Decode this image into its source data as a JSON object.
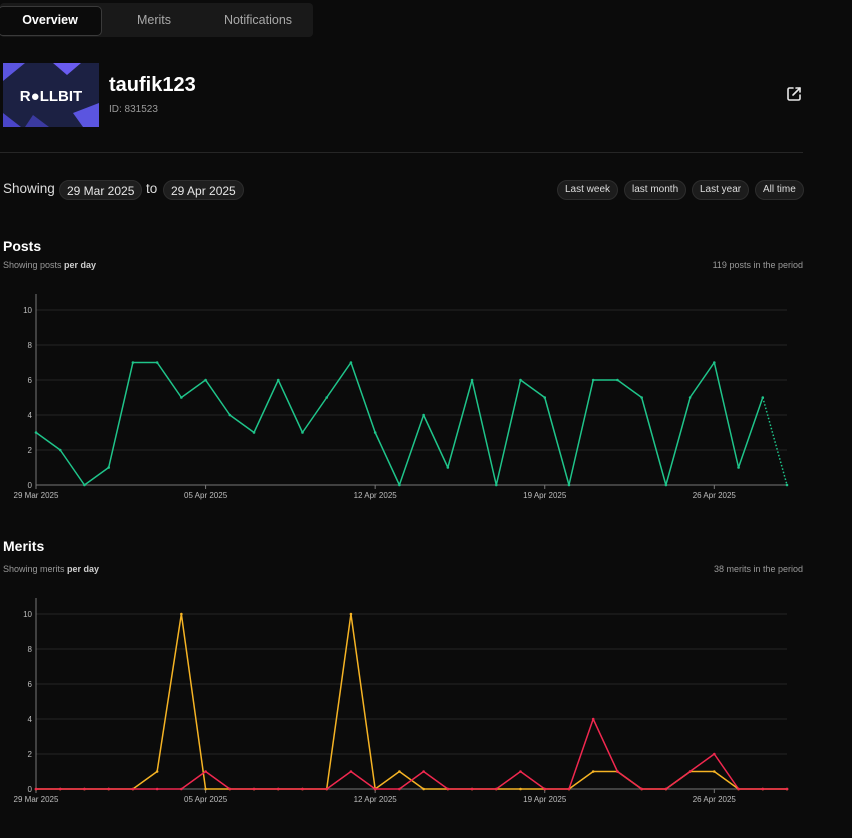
{
  "tabs": [
    {
      "label": "Overview",
      "active": true
    },
    {
      "label": "Merits",
      "active": false
    },
    {
      "label": "Notifications",
      "active": false
    }
  ],
  "profile": {
    "username": "taufik123",
    "id_text": "ID: 831523",
    "avatar_text": "R●LLBIT"
  },
  "range": {
    "showing_label": "Showing",
    "from": "29 Mar 2025",
    "to_label": "to",
    "to": "29 Apr 2025",
    "buttons": [
      "Last week",
      "last month",
      "Last year",
      "All time"
    ]
  },
  "posts": {
    "title": "Posts",
    "subtitle_prefix": "Showing posts ",
    "subtitle_bold": "per day",
    "count_text": "119 posts in the period"
  },
  "merits": {
    "title": "Merits",
    "subtitle_prefix": "Showing merits ",
    "subtitle_bold": "per day",
    "count_text": "38 merits in the period"
  },
  "colors": {
    "posts_line": "#1fc48a",
    "merits_orange": "#f5b324",
    "merits_red": "#f0284f",
    "grid": "#262626"
  },
  "chart_data": [
    {
      "type": "line",
      "dates": [
        "2025-03-29",
        "2025-03-30",
        "2025-03-31",
        "2025-04-01",
        "2025-04-02",
        "2025-04-03",
        "2025-04-04",
        "2025-04-05",
        "2025-04-06",
        "2025-04-07",
        "2025-04-08",
        "2025-04-09",
        "2025-04-10",
        "2025-04-11",
        "2025-04-12",
        "2025-04-13",
        "2025-04-14",
        "2025-04-15",
        "2025-04-16",
        "2025-04-17",
        "2025-04-18",
        "2025-04-19",
        "2025-04-20",
        "2025-04-21",
        "2025-04-22",
        "2025-04-23",
        "2025-04-24",
        "2025-04-25",
        "2025-04-26",
        "2025-04-27",
        "2025-04-28",
        "2025-04-29"
      ],
      "x_tick_labels": [
        "29 Mar 2025",
        "05 Apr 2025",
        "12 Apr 2025",
        "19 Apr 2025",
        "26 Apr 2025"
      ],
      "y_ticks": [
        0,
        2,
        4,
        6,
        8,
        10
      ],
      "ylim": [
        0,
        10
      ],
      "series": [
        {
          "values": [
            3,
            2,
            0,
            1,
            7,
            7,
            5,
            6,
            4,
            3,
            6,
            3,
            5,
            7,
            3,
            0,
            4,
            1,
            6,
            0,
            6,
            5,
            0,
            6,
            6,
            5,
            0,
            5,
            7,
            1,
            5,
            0
          ],
          "last_segment_dotted": true
        }
      ]
    },
    {
      "type": "line",
      "dates": [
        "2025-03-29",
        "2025-03-30",
        "2025-03-31",
        "2025-04-01",
        "2025-04-02",
        "2025-04-03",
        "2025-04-04",
        "2025-04-05",
        "2025-04-06",
        "2025-04-07",
        "2025-04-08",
        "2025-04-09",
        "2025-04-10",
        "2025-04-11",
        "2025-04-12",
        "2025-04-13",
        "2025-04-14",
        "2025-04-15",
        "2025-04-16",
        "2025-04-17",
        "2025-04-18",
        "2025-04-19",
        "2025-04-20",
        "2025-04-21",
        "2025-04-22",
        "2025-04-23",
        "2025-04-24",
        "2025-04-25",
        "2025-04-26",
        "2025-04-27",
        "2025-04-28",
        "2025-04-29"
      ],
      "x_tick_labels": [
        "29 Mar 2025",
        "05 Apr 2025",
        "12 Apr 2025",
        "19 Apr 2025",
        "26 Apr 2025"
      ],
      "y_ticks": [
        0,
        2,
        4,
        6,
        8,
        10
      ],
      "ylim": [
        0,
        10
      ],
      "series": [
        {
          "color": "orange",
          "values": [
            0,
            0,
            0,
            0,
            0,
            1,
            10,
            0,
            0,
            0,
            0,
            0,
            0,
            10,
            0,
            1,
            0,
            0,
            0,
            0,
            0,
            0,
            0,
            1,
            1,
            0,
            0,
            1,
            1,
            0,
            0,
            0
          ]
        },
        {
          "color": "red",
          "values": [
            0,
            0,
            0,
            0,
            0,
            0,
            0,
            1,
            0,
            0,
            0,
            0,
            0,
            1,
            0,
            0,
            1,
            0,
            0,
            0,
            1,
            0,
            0,
            4,
            1,
            0,
            0,
            1,
            2,
            0,
            0,
            0
          ]
        }
      ]
    }
  ]
}
